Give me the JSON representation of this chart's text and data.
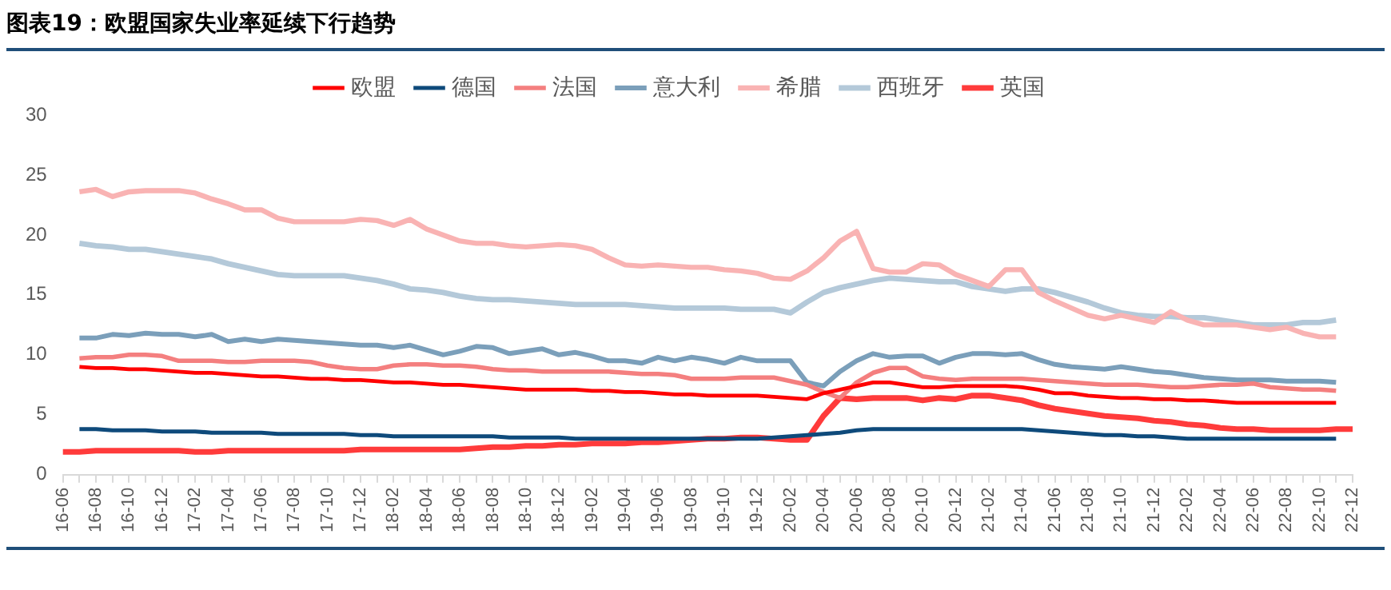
{
  "chart_data": {
    "type": "line",
    "title": "图表19：欧盟国家失业率延续下行趋势",
    "categories": [
      "16-06",
      null,
      "16-08",
      null,
      "16-10",
      null,
      "16-12",
      null,
      "17-02",
      null,
      "17-04",
      null,
      "17-06",
      null,
      "17-08",
      null,
      "17-10",
      null,
      "17-12",
      null,
      "18-02",
      null,
      "18-04",
      null,
      "18-06",
      null,
      "18-08",
      null,
      "18-10",
      null,
      "18-12",
      null,
      "19-02",
      null,
      "19-04",
      null,
      "19-06",
      null,
      "19-08",
      null,
      "19-10",
      null,
      "19-12",
      null,
      "20-02",
      null,
      "20-04",
      null,
      "20-06",
      null,
      "20-08",
      null,
      "20-10",
      null,
      "20-12",
      null,
      "21-02",
      null,
      "21-04",
      null,
      "21-06",
      null,
      "21-08",
      null,
      "21-10",
      null,
      "21-12",
      null,
      "22-02",
      null,
      "22-04",
      null,
      "22-06",
      null,
      "22-08",
      null,
      "22-10",
      null,
      "22-12"
    ],
    "ylim": [
      0,
      30
    ],
    "yticks": [
      0,
      5,
      10,
      15,
      20,
      25,
      30
    ],
    "legend": "top",
    "marker": "none",
    "line_style": "solid",
    "series": [
      {
        "name": "欧盟",
        "color": "#ff0000",
        "values": [
          null,
          9.0,
          8.9,
          8.9,
          8.8,
          8.8,
          8.7,
          8.6,
          8.5,
          8.5,
          8.4,
          8.3,
          8.2,
          8.2,
          8.1,
          8.0,
          8.0,
          7.9,
          7.9,
          7.8,
          7.7,
          7.7,
          7.6,
          7.5,
          7.5,
          7.4,
          7.3,
          7.2,
          7.1,
          7.1,
          7.1,
          7.1,
          7.0,
          7.0,
          6.9,
          6.9,
          6.8,
          6.7,
          6.7,
          6.6,
          6.6,
          6.6,
          6.6,
          6.5,
          6.4,
          6.3,
          6.8,
          7.1,
          7.4,
          7.7,
          7.7,
          7.5,
          7.3,
          7.3,
          7.4,
          7.4,
          7.4,
          7.4,
          7.3,
          7.1,
          6.8,
          6.8,
          6.6,
          6.5,
          6.4,
          6.4,
          6.3,
          6.3,
          6.2,
          6.2,
          6.1,
          6.0,
          6.0,
          6.0,
          6.0,
          6.0,
          6.0,
          6.0,
          null
        ]
      },
      {
        "name": "德国",
        "color": "#0e4a7b",
        "values": [
          null,
          3.8,
          3.8,
          3.7,
          3.7,
          3.7,
          3.6,
          3.6,
          3.6,
          3.5,
          3.5,
          3.5,
          3.5,
          3.4,
          3.4,
          3.4,
          3.4,
          3.4,
          3.3,
          3.3,
          3.2,
          3.2,
          3.2,
          3.2,
          3.2,
          3.2,
          3.2,
          3.1,
          3.1,
          3.1,
          3.1,
          3.0,
          3.0,
          3.0,
          3.0,
          3.0,
          3.0,
          3.0,
          3.0,
          3.0,
          3.0,
          3.0,
          3.0,
          3.1,
          3.2,
          3.3,
          3.4,
          3.5,
          3.7,
          3.8,
          3.8,
          3.8,
          3.8,
          3.8,
          3.8,
          3.8,
          3.8,
          3.8,
          3.8,
          3.7,
          3.6,
          3.5,
          3.4,
          3.3,
          3.3,
          3.2,
          3.2,
          3.1,
          3.0,
          3.0,
          3.0,
          3.0,
          3.0,
          3.0,
          3.0,
          3.0,
          3.0,
          3.0,
          null
        ]
      },
      {
        "name": "法国",
        "color": "#f47f7f",
        "values": [
          null,
          9.7,
          9.8,
          9.8,
          10.0,
          10.0,
          9.9,
          9.5,
          9.5,
          9.5,
          9.4,
          9.4,
          9.5,
          9.5,
          9.5,
          9.4,
          9.1,
          8.9,
          8.8,
          8.8,
          9.1,
          9.2,
          9.2,
          9.1,
          9.1,
          9.0,
          8.8,
          8.7,
          8.7,
          8.6,
          8.6,
          8.6,
          8.6,
          8.6,
          8.5,
          8.4,
          8.4,
          8.3,
          8.0,
          8.0,
          8.0,
          8.1,
          8.1,
          8.1,
          7.8,
          7.5,
          6.9,
          6.4,
          7.7,
          8.5,
          8.9,
          8.9,
          8.2,
          8.0,
          7.9,
          8.0,
          8.0,
          8.0,
          8.0,
          7.9,
          7.8,
          7.7,
          7.6,
          7.5,
          7.5,
          7.5,
          7.4,
          7.3,
          7.3,
          7.4,
          7.5,
          7.5,
          7.6,
          7.3,
          7.2,
          7.1,
          7.1,
          7.0,
          null
        ]
      },
      {
        "name": "意大利",
        "color": "#7b9fba",
        "values": [
          null,
          11.4,
          11.4,
          11.7,
          11.6,
          11.8,
          11.7,
          11.7,
          11.5,
          11.7,
          11.1,
          11.3,
          11.1,
          11.3,
          11.2,
          11.1,
          11.0,
          10.9,
          10.8,
          10.8,
          10.6,
          10.8,
          10.4,
          10.0,
          10.3,
          10.7,
          10.6,
          10.1,
          10.3,
          10.5,
          10.0,
          10.2,
          9.9,
          9.5,
          9.5,
          9.3,
          9.8,
          9.5,
          9.8,
          9.6,
          9.3,
          9.8,
          9.5,
          9.5,
          9.5,
          7.7,
          7.4,
          8.6,
          9.5,
          10.1,
          9.8,
          9.9,
          9.9,
          9.3,
          9.8,
          10.1,
          10.1,
          10.0,
          10.1,
          9.6,
          9.2,
          9.0,
          8.9,
          8.8,
          9.0,
          8.8,
          8.6,
          8.5,
          8.3,
          8.1,
          8.0,
          7.9,
          7.9,
          7.9,
          7.8,
          7.8,
          7.8,
          7.7,
          null
        ]
      },
      {
        "name": "希腊",
        "color": "#f9b3b3",
        "values": [
          null,
          23.6,
          23.8,
          23.2,
          23.6,
          23.7,
          23.7,
          23.7,
          23.5,
          23.0,
          22.6,
          22.1,
          22.1,
          21.4,
          21.1,
          21.1,
          21.1,
          21.1,
          21.3,
          21.2,
          20.8,
          21.3,
          20.5,
          20.0,
          19.5,
          19.3,
          19.3,
          19.1,
          19.0,
          19.1,
          19.2,
          19.1,
          18.8,
          18.1,
          17.5,
          17.4,
          17.5,
          17.4,
          17.3,
          17.3,
          17.1,
          17.0,
          16.8,
          16.4,
          16.3,
          17.0,
          18.1,
          19.5,
          20.3,
          17.2,
          16.9,
          16.9,
          17.6,
          17.5,
          16.7,
          16.2,
          15.7,
          17.1,
          17.1,
          15.2,
          14.5,
          13.9,
          13.3,
          13.0,
          13.3,
          13.0,
          12.7,
          13.6,
          12.9,
          12.5,
          12.5,
          12.5,
          12.3,
          12.1,
          12.3,
          11.8,
          11.5,
          11.5,
          null
        ]
      },
      {
        "name": "西班牙",
        "color": "#b4c9d9",
        "values": [
          null,
          19.3,
          19.1,
          19.0,
          18.8,
          18.8,
          18.6,
          18.4,
          18.2,
          18.0,
          17.6,
          17.3,
          17.0,
          16.7,
          16.6,
          16.6,
          16.6,
          16.6,
          16.4,
          16.2,
          15.9,
          15.5,
          15.4,
          15.2,
          14.9,
          14.7,
          14.6,
          14.6,
          14.5,
          14.4,
          14.3,
          14.2,
          14.2,
          14.2,
          14.2,
          14.1,
          14.0,
          13.9,
          13.9,
          13.9,
          13.9,
          13.8,
          13.8,
          13.8,
          13.5,
          14.4,
          15.2,
          15.6,
          15.9,
          16.2,
          16.4,
          16.3,
          16.2,
          16.1,
          16.1,
          15.7,
          15.5,
          15.3,
          15.5,
          15.5,
          15.2,
          14.8,
          14.4,
          13.9,
          13.5,
          13.3,
          13.2,
          13.2,
          13.1,
          13.1,
          12.9,
          12.7,
          12.5,
          12.5,
          12.5,
          12.7,
          12.7,
          12.9,
          null
        ]
      },
      {
        "name": "英国",
        "color": "#ff3b3b",
        "values": [
          1.9,
          1.9,
          2.0,
          2.0,
          2.0,
          2.0,
          2.0,
          2.0,
          1.9,
          1.9,
          2.0,
          2.0,
          2.0,
          2.0,
          2.0,
          2.0,
          2.0,
          2.0,
          2.1,
          2.1,
          2.1,
          2.1,
          2.1,
          2.1,
          2.1,
          2.2,
          2.3,
          2.3,
          2.4,
          2.4,
          2.5,
          2.5,
          2.6,
          2.6,
          2.6,
          2.7,
          2.7,
          2.8,
          2.9,
          3.0,
          3.0,
          3.1,
          3.1,
          3.0,
          2.9,
          2.9,
          4.9,
          6.4,
          6.3,
          6.4,
          6.4,
          6.4,
          6.2,
          6.4,
          6.3,
          6.6,
          6.6,
          6.4,
          6.2,
          5.8,
          5.5,
          5.3,
          5.1,
          4.9,
          4.8,
          4.7,
          4.5,
          4.4,
          4.2,
          4.1,
          3.9,
          3.8,
          3.8,
          3.7,
          3.7,
          3.7,
          3.7,
          3.8,
          3.8
        ]
      }
    ]
  }
}
